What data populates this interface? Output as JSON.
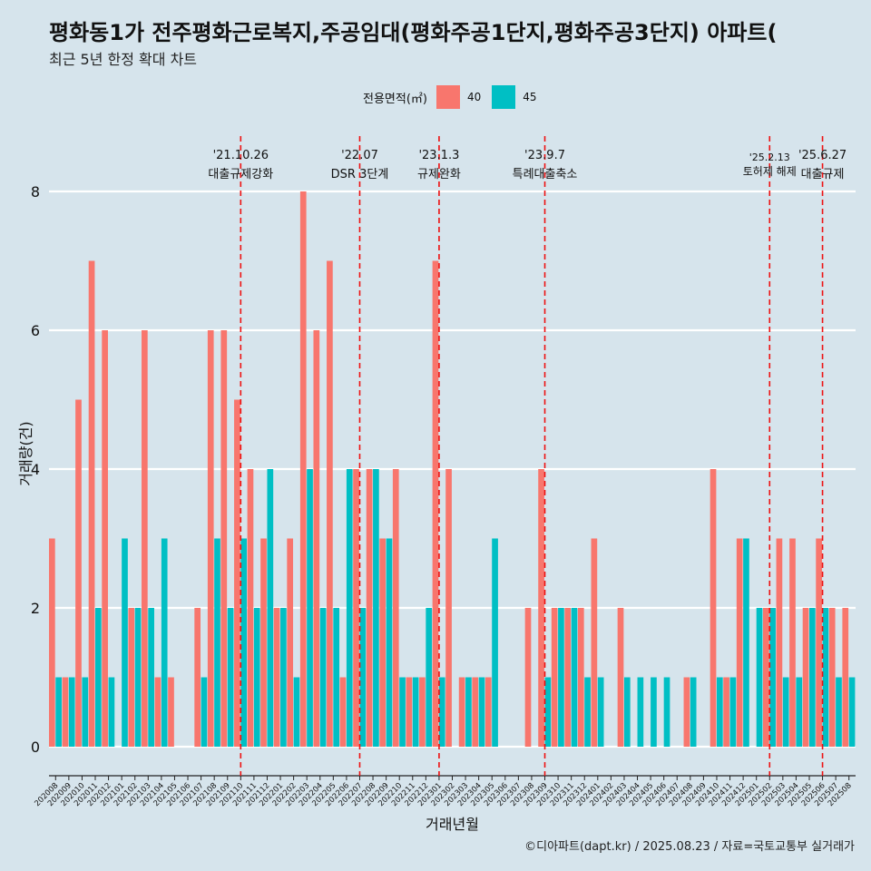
{
  "title": "평화동1가 전주평화근로복지,주공임대(평화주공1단지,평화주공3단지) 아파트(",
  "subtitle": "최근 5년 한정 확대 차트",
  "caption": "©디아파트(dapt.kr) / 2025.08.23 / 자료=국토교통부 실거래가",
  "colors": {
    "s40": "#f8766d",
    "s45": "#00bfc4",
    "grid": "#ffffff",
    "event": "#ee1111",
    "background": "#d6e4ec"
  },
  "chart_data": {
    "type": "bar",
    "xlabel": "거래년월",
    "ylabel": "거래량(건)",
    "ylim": [
      0,
      8
    ],
    "yticks": [
      0,
      2,
      4,
      6,
      8
    ],
    "legend": {
      "title": "전용면적(㎡)",
      "position": "top"
    },
    "categories": [
      "202008",
      "202009",
      "202010",
      "202011",
      "202012",
      "202101",
      "202102",
      "202103",
      "202104",
      "202105",
      "202106",
      "202107",
      "202108",
      "202109",
      "202110",
      "202111",
      "202112",
      "202201",
      "202202",
      "202203",
      "202204",
      "202205",
      "202206",
      "202207",
      "202208",
      "202209",
      "202210",
      "202211",
      "202212",
      "202301",
      "202302",
      "202303",
      "202304",
      "202305",
      "202306",
      "202307",
      "202308",
      "202309",
      "202310",
      "202311",
      "202312",
      "202401",
      "202402",
      "202403",
      "202404",
      "202405",
      "202406",
      "202407",
      "202408",
      "202409",
      "202410",
      "202411",
      "202412",
      "202501",
      "202502",
      "202503",
      "202504",
      "202505",
      "202506",
      "202507",
      "202508"
    ],
    "series": [
      {
        "name": "40",
        "values": [
          3,
          1,
          5,
          7,
          6,
          0,
          2,
          6,
          1,
          1,
          0,
          2,
          6,
          6,
          5,
          4,
          3,
          2,
          3,
          8,
          6,
          7,
          1,
          4,
          4,
          3,
          4,
          1,
          1,
          7,
          4,
          1,
          1,
          1,
          0,
          0,
          2,
          4,
          2,
          2,
          2,
          3,
          0,
          2,
          0,
          0,
          0,
          0,
          1,
          0,
          4,
          1,
          3,
          0,
          2,
          3,
          3,
          2,
          3,
          2,
          2
        ]
      },
      {
        "name": "45",
        "values": [
          1,
          1,
          1,
          2,
          1,
          3,
          2,
          2,
          3,
          0,
          0,
          1,
          3,
          2,
          3,
          2,
          4,
          2,
          1,
          4,
          2,
          2,
          4,
          2,
          4,
          3,
          1,
          1,
          2,
          1,
          0,
          1,
          1,
          3,
          0,
          0,
          0,
          1,
          2,
          2,
          1,
          1,
          0,
          1,
          1,
          1,
          1,
          0,
          1,
          0,
          1,
          1,
          3,
          2,
          2,
          1,
          1,
          2,
          2,
          1,
          1
        ]
      }
    ],
    "events": [
      {
        "date": "'21.10.26",
        "label": "대출규제강화",
        "at": "202110"
      },
      {
        "date": "'22.07",
        "label": "DSR 3단계",
        "at": "202207"
      },
      {
        "date": "'23.1.3",
        "label": "규제완화",
        "at": "202301"
      },
      {
        "date": "'23.9.7",
        "label": "특례대출축소",
        "at": "202309"
      },
      {
        "date": "'25.2.13",
        "label": "토허제 해제",
        "at": "202502"
      },
      {
        "date": "'25.6.27",
        "label": "대출규제",
        "at": "202506"
      }
    ]
  }
}
